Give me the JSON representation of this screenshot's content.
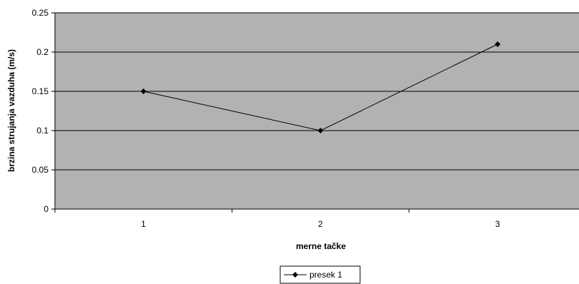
{
  "chart_data": {
    "type": "line",
    "title": "",
    "xlabel": "merne tačke",
    "ylabel": "brzina strujanja vazduha (m/s)",
    "categories": [
      "1",
      "2",
      "3"
    ],
    "ylim": [
      0,
      0.25
    ],
    "yticks": [
      "0",
      "0.05",
      "0.1",
      "0.15",
      "0.2",
      "0.25"
    ],
    "grid": true,
    "legend_position": "bottom",
    "colors": {
      "plot_background": "#b2b2b2",
      "series": "#000000",
      "gridline": "#000000"
    },
    "series": [
      {
        "name": "presek 1",
        "values": [
          0.15,
          0.1,
          0.21
        ],
        "marker": "diamond"
      }
    ]
  }
}
